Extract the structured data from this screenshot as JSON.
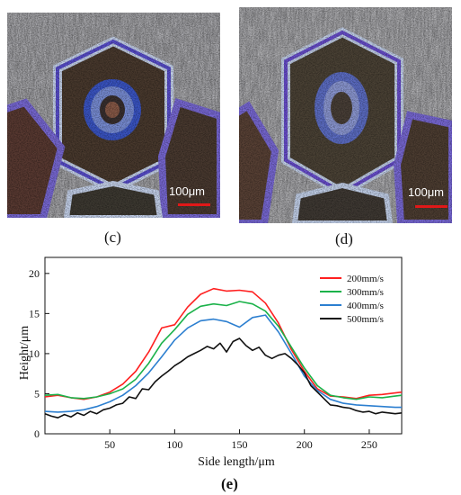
{
  "panels": {
    "c": {
      "label": "(c)",
      "scale_label": "100μm"
    },
    "d": {
      "label": "(d)",
      "scale_label": "100μm"
    },
    "e": {
      "label": "(e)"
    }
  },
  "colors": {
    "s200": "#ff2020",
    "s300": "#1bb24a",
    "s400": "#2c7fd0",
    "s500": "#111111",
    "scale_bar": "#e01818"
  },
  "chart_data": {
    "type": "line",
    "xlabel": "Side length/μm",
    "ylabel": "Height/μm",
    "xlim": [
      0,
      275
    ],
    "ylim": [
      0,
      22
    ],
    "xticks": [
      50,
      100,
      150,
      200,
      250
    ],
    "yticks": [
      0,
      5,
      10,
      15,
      20
    ],
    "legend_position": "top-right",
    "series": [
      {
        "name": "200mm/s",
        "x": [
          0,
          10,
          20,
          30,
          40,
          50,
          60,
          70,
          80,
          90,
          100,
          110,
          120,
          130,
          140,
          150,
          160,
          170,
          180,
          190,
          200,
          210,
          220,
          230,
          240,
          250,
          260,
          270,
          275
        ],
        "y": [
          4.6,
          4.8,
          4.5,
          4.3,
          4.6,
          5.2,
          6.2,
          7.8,
          10.2,
          13.2,
          13.6,
          15.8,
          17.4,
          18.1,
          17.8,
          17.9,
          17.7,
          16.3,
          13.8,
          10.5,
          7.8,
          5.6,
          4.7,
          4.6,
          4.4,
          4.8,
          4.9,
          5.1,
          5.2
        ]
      },
      {
        "name": "300mm/s",
        "x": [
          0,
          10,
          20,
          30,
          40,
          50,
          60,
          70,
          80,
          90,
          100,
          110,
          120,
          130,
          140,
          150,
          160,
          170,
          180,
          190,
          200,
          210,
          220,
          230,
          240,
          250,
          260,
          270,
          275
        ],
        "y": [
          4.8,
          4.9,
          4.5,
          4.4,
          4.6,
          5.0,
          5.6,
          6.8,
          8.8,
          11.3,
          13.0,
          14.9,
          15.9,
          16.2,
          16.0,
          16.5,
          16.2,
          15.3,
          13.4,
          10.8,
          8.2,
          6.0,
          4.8,
          4.5,
          4.3,
          4.6,
          4.5,
          4.7,
          4.8
        ]
      },
      {
        "name": "400mm/s",
        "x": [
          0,
          10,
          20,
          30,
          40,
          50,
          60,
          70,
          80,
          90,
          100,
          110,
          120,
          130,
          140,
          150,
          160,
          170,
          180,
          190,
          200,
          210,
          220,
          230,
          240,
          250,
          260,
          270,
          275
        ],
        "y": [
          2.8,
          2.7,
          2.8,
          3.0,
          3.4,
          4.0,
          4.8,
          6.0,
          7.6,
          9.6,
          11.7,
          13.2,
          14.1,
          14.3,
          14.0,
          13.3,
          14.5,
          14.8,
          12.7,
          10.0,
          7.2,
          5.4,
          4.3,
          3.8,
          3.6,
          3.5,
          3.4,
          3.3,
          3.3
        ]
      },
      {
        "name": "500mm/s",
        "x": [
          0,
          5,
          10,
          15,
          20,
          25,
          30,
          35,
          40,
          45,
          50,
          55,
          60,
          65,
          70,
          75,
          80,
          85,
          90,
          95,
          100,
          105,
          110,
          115,
          120,
          125,
          130,
          135,
          140,
          145,
          150,
          155,
          160,
          165,
          170,
          175,
          180,
          185,
          190,
          195,
          200,
          205,
          210,
          215,
          220,
          225,
          230,
          235,
          240,
          245,
          250,
          255,
          260,
          265,
          270,
          275
        ],
        "y": [
          2.5,
          2.2,
          2.0,
          2.4,
          2.1,
          2.6,
          2.3,
          2.8,
          2.5,
          3.0,
          3.2,
          3.6,
          3.8,
          4.6,
          4.4,
          5.6,
          5.5,
          6.5,
          7.2,
          7.8,
          8.5,
          9.0,
          9.6,
          10.0,
          10.4,
          10.9,
          10.6,
          11.3,
          10.2,
          11.5,
          11.9,
          11.0,
          10.4,
          10.8,
          9.8,
          9.4,
          9.8,
          10.0,
          9.4,
          8.6,
          7.6,
          6.0,
          5.2,
          4.4,
          3.6,
          3.5,
          3.3,
          3.2,
          2.9,
          2.7,
          2.8,
          2.5,
          2.7,
          2.6,
          2.5,
          2.6
        ]
      }
    ]
  }
}
